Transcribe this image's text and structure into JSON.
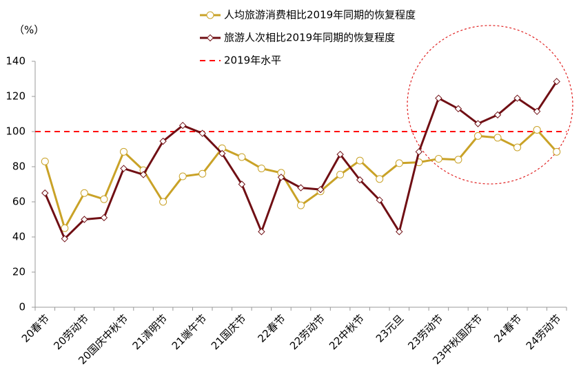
{
  "chart_data": {
    "type": "line",
    "unit_label": "（%）",
    "categories": [
      "20春节",
      null,
      "20劳动节",
      null,
      "20国庆中秋节",
      null,
      "21清明节",
      null,
      "21端午节",
      null,
      "21国庆节",
      null,
      "22春节",
      null,
      "22劳动节",
      null,
      "22中秋节",
      null,
      "23元旦",
      null,
      "23劳动节",
      null,
      "23中秋国庆节",
      null,
      "24春节",
      null,
      "24劳动节"
    ],
    "series": [
      {
        "name": "人均旅游消费相比2019年同期的恢复程度",
        "color": "#c9a227",
        "marker": "circle",
        "values": [
          83,
          45,
          65,
          61.5,
          88.5,
          78,
          60,
          74.5,
          76,
          90.5,
          85.5,
          79,
          76.5,
          58,
          66,
          75.5,
          83.5,
          73,
          82,
          82.5,
          84.5,
          84,
          97.5,
          96.5,
          91,
          101,
          88.5
        ]
      },
      {
        "name": "旅游人次相比2019年同期的恢复程度",
        "color": "#700f14",
        "marker": "diamond",
        "values": [
          65,
          39,
          50,
          51,
          79,
          75.5,
          94.5,
          103.5,
          99,
          87.5,
          70,
          43,
          74,
          68,
          67,
          87,
          72.5,
          61,
          43,
          88.5,
          119,
          113,
          104.5,
          109.5,
          119,
          111.5,
          128.5
        ]
      }
    ],
    "reference_line": {
      "name": "2019年水平",
      "value": 100,
      "color": "#ff0000"
    },
    "ylim": [
      0,
      140
    ],
    "yticks": [
      0,
      20,
      40,
      60,
      80,
      100,
      120,
      140
    ],
    "grid": false
  }
}
